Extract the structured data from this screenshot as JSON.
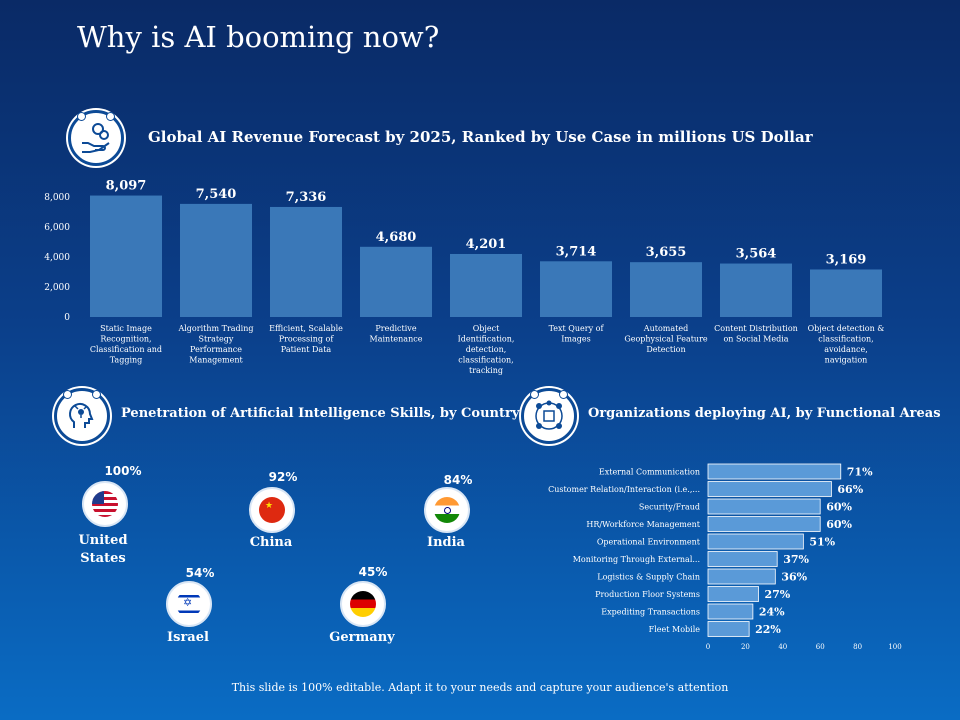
{
  "title": "Why is AI booming now?",
  "footer": "This slide is 100% editable. Adapt it to your needs and capture your audience's attention",
  "sections": {
    "revenue": "Global AI Revenue Forecast by 2025, Ranked by Use Case in millions US Dollar",
    "penetration": "Penetration of Artificial Intelligence Skills, by Country",
    "organizations": "Organizations deploying AI, by Functional Areas"
  },
  "colors": {
    "bar": "#3a78b8",
    "hbar": "#5a9ad8",
    "icon_ring": "#0c4a96"
  },
  "icons": {
    "revenue": "money-hand-icon",
    "penetration": "ai-head-icon",
    "organizations": "network-icon"
  },
  "countries": [
    {
      "name": "United States",
      "line1": "United",
      "line2": "States",
      "pct": "100%",
      "flag": "us-flag-icon"
    },
    {
      "name": "China",
      "line1": "China",
      "line2": "",
      "pct": "92%",
      "flag": "china-flag-icon"
    },
    {
      "name": "India",
      "line1": "India",
      "line2": "",
      "pct": "84%",
      "flag": "india-flag-icon"
    },
    {
      "name": "Israel",
      "line1": "Israel",
      "line2": "",
      "pct": "54%",
      "flag": "israel-flag-icon"
    },
    {
      "name": "Germany",
      "line1": "Germany",
      "line2": "",
      "pct": "45%",
      "flag": "germany-flag-icon"
    }
  ],
  "chart_data": [
    {
      "type": "bar",
      "title": "Global AI Revenue Forecast by 2025, Ranked by Use Case in millions US Dollar",
      "categories": [
        "Static Image Recognition, Classification and Tagging",
        "Algorithm Trading Strategy Performance Management",
        "Efficient, Scalable Processing of Patient Data",
        "Predictive Maintenance",
        "Object Identification, detection, classification, tracking",
        "Text Query of Images",
        "Automated Geophysical Feature Detection",
        "Content Distribution on Social Media",
        "Object detection & classification, avoidance, navigation"
      ],
      "category_lines": [
        [
          "Static Image",
          "Recognition,",
          "Classification and",
          "Tagging"
        ],
        [
          "Algorithm Trading",
          "Strategy",
          "Performance",
          "Management"
        ],
        [
          "Efficient, Scalable",
          "Processing of",
          "Patient Data"
        ],
        [
          "Predictive",
          "Maintenance"
        ],
        [
          "Object",
          "Identification,",
          "detection,",
          "classification,",
          "tracking"
        ],
        [
          "Text Query of",
          "Images"
        ],
        [
          "Automated",
          "Geophysical Feature",
          "Detection"
        ],
        [
          "Content Distribution",
          "on Social Media"
        ],
        [
          "Object detection &",
          "classification,",
          "avoidance,",
          "navigation"
        ]
      ],
      "values": [
        8097,
        7540,
        7336,
        4680,
        4201,
        3714,
        3655,
        3564,
        3169
      ],
      "value_labels": [
        "8,097",
        "7,540",
        "7,336",
        "4,680",
        "4,201",
        "3,714",
        "3,655",
        "3,564",
        "3,169"
      ],
      "ylim": [
        0,
        8000
      ],
      "yticks": [
        "0",
        "2,000",
        "4,000",
        "6,000",
        "8,000"
      ],
      "grid": false
    },
    {
      "type": "bar",
      "orientation": "horizontal",
      "title": "Organizations deploying AI, by Functional Areas",
      "categories": [
        "External Communication",
        "Customer Relation/Interaction (i.e.,...",
        "Security/Fraud",
        "HR/Workforce Management",
        "Operational Environment",
        "Monitoring Through External...",
        "Logistics & Supply Chain",
        "Production Floor Systems",
        "Expediting Transactions",
        "Fleet Mobile"
      ],
      "values": [
        71,
        66,
        60,
        60,
        51,
        37,
        36,
        27,
        24,
        22
      ],
      "value_labels": [
        "71%",
        "66%",
        "60%",
        "60%",
        "51%",
        "37%",
        "36%",
        "27%",
        "24%",
        "22%"
      ],
      "xlim": [
        0,
        100
      ],
      "xticks": [
        "0",
        "20",
        "40",
        "60",
        "80",
        "100"
      ],
      "grid": false
    }
  ]
}
